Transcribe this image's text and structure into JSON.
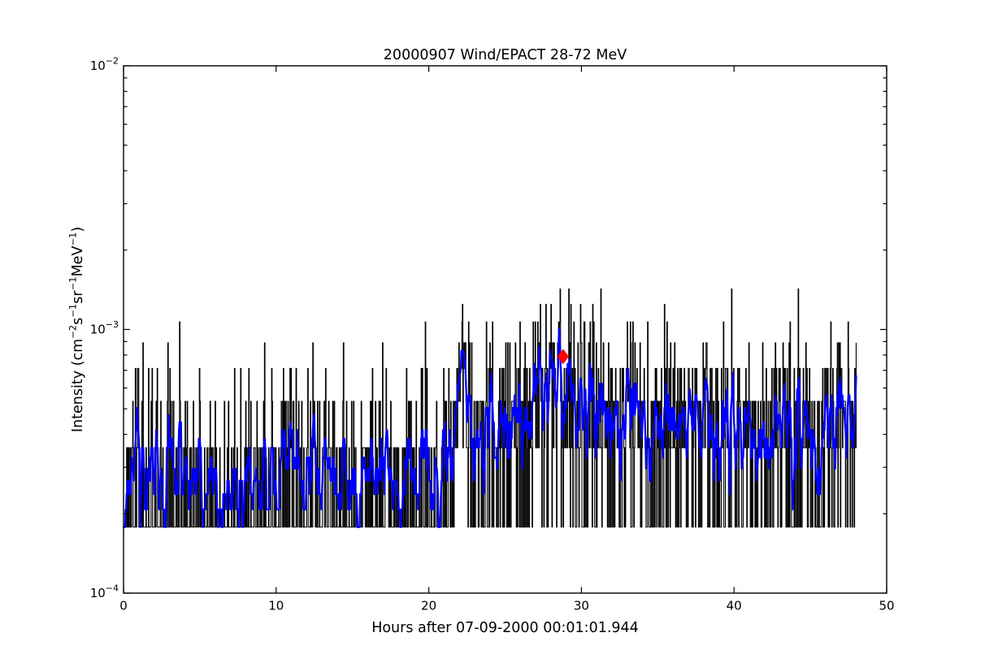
{
  "figure": {
    "title": "20000907 Wind/EPACT 28-72 MeV",
    "xlabel": "Hours after 07-09-2000 00:01:01.944",
    "ylabel_segments": [
      {
        "t": "Intensity (cm"
      },
      {
        "t": "−2",
        "sup": true
      },
      {
        "t": "s"
      },
      {
        "t": "−1",
        "sup": true
      },
      {
        "t": "sr"
      },
      {
        "t": "−1",
        "sup": true
      },
      {
        "t": "MeV"
      },
      {
        "t": "−1",
        "sup": true
      },
      {
        "t": ")"
      }
    ],
    "background_color": "#ffffff",
    "frame_color": "#000000"
  },
  "chart_data": {
    "type": "line",
    "title": "20000907 Wind/EPACT 28-72 MeV",
    "xlabel": "Hours after 07-09-2000 00:01:01.944",
    "ylabel": "Intensity (cm⁻² s⁻¹ sr⁻¹ MeV⁻¹)",
    "x_range": [
      0,
      50
    ],
    "y_range": [
      0.0001,
      0.01
    ],
    "y_scale": "log",
    "grid": false,
    "legend": null,
    "x_ticks": [
      {
        "value": 0,
        "label": "0"
      },
      {
        "value": 10,
        "label": "10"
      },
      {
        "value": 20,
        "label": "20"
      },
      {
        "value": 30,
        "label": "30"
      },
      {
        "value": 40,
        "label": "40"
      },
      {
        "value": 50,
        "label": "50"
      }
    ],
    "y_major_ticks": [
      {
        "value": 0.01,
        "mantissa": "10",
        "exponent": "−2"
      },
      {
        "value": 0.001,
        "mantissa": "10",
        "exponent": "−3"
      },
      {
        "value": 0.0001,
        "mantissa": "10",
        "exponent": "−4"
      }
    ],
    "y_minor_decades": [
      0.0001,
      0.001
    ],
    "y_minor_multiples": [
      2,
      3,
      4,
      5,
      6,
      7,
      8,
      9
    ],
    "data_hours": [
      0,
      48
    ],
    "cadence_minutes": 2,
    "intensity_quantum": 0.000178,
    "min_level_quanta": 1,
    "max_level_quanta": 8,
    "series": [
      {
        "name": "raw 2-min intensity",
        "color": "#000000",
        "draw": "steps-post",
        "line_width": 1.1
      },
      {
        "name": "smoothed intensity",
        "color": "#0000ff",
        "draw": "line",
        "line_width": 2.3,
        "smooth_window_samples": 6
      }
    ],
    "mean_level_profile": {
      "hours": [
        0,
        20.6,
        21.3,
        22.0,
        22.4,
        22.8,
        24.5,
        26.0,
        27.3,
        28.4,
        29.1,
        30.0,
        31.5,
        34.0,
        37.5,
        41.5,
        45.0,
        48.0
      ],
      "mean_quanta": [
        1.32,
        1.32,
        1.8,
        2.6,
        2.9,
        2.2,
        2.3,
        2.6,
        3.0,
        3.4,
        3.35,
        2.9,
        2.6,
        2.45,
        2.4,
        2.45,
        2.3,
        2.3
      ]
    },
    "noise_seed": 20000907,
    "event_marker": {
      "hours": 28.8,
      "intensity": 0.00079,
      "marker": "thin-diamond",
      "color": "#ff0000"
    }
  }
}
